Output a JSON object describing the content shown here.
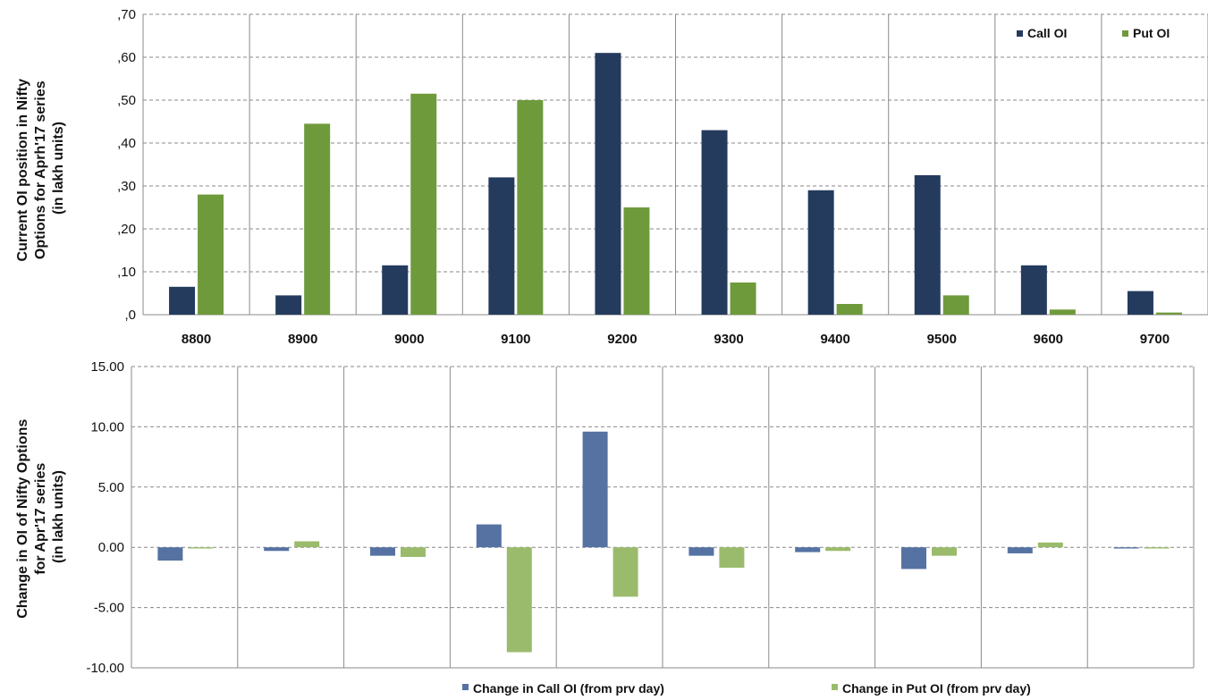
{
  "colors": {
    "call_oi": "#243b5e",
    "put_oi": "#6f9a3b",
    "change_call": "#5572a3",
    "change_put": "#9bbb6c"
  },
  "chart_data": [
    {
      "type": "bar",
      "categories": [
        "8800",
        "8900",
        "9000",
        "9100",
        "9200",
        "9300",
        "9400",
        "9500",
        "9600",
        "9700"
      ],
      "series": [
        {
          "name": "Call OI",
          "values": [
            6.5,
            4.5,
            11.5,
            32,
            61,
            43,
            29,
            32.5,
            11.5,
            5.5
          ]
        },
        {
          "name": "Put OI",
          "values": [
            28,
            44.5,
            51.5,
            50,
            25,
            7.5,
            2.5,
            4.5,
            1.2,
            0.5
          ]
        }
      ],
      "ylabel": "Current OI position in Nifty Options for Aprh'17  series (in lakh units)",
      "ylim": [
        0,
        70
      ],
      "yticks": [
        ",0",
        ",10",
        ",20",
        ",30",
        ",40",
        ",50",
        ",60",
        ",70"
      ],
      "ytick_values": [
        0,
        10,
        20,
        30,
        40,
        50,
        60,
        70
      ],
      "legend_position": "top-right",
      "grid": true
    },
    {
      "type": "bar",
      "categories": [
        "8800",
        "8900",
        "9000",
        "9100",
        "9200",
        "9300",
        "9400",
        "9500",
        "9600",
        "9700"
      ],
      "series": [
        {
          "name": "Change in Call OI (from prv day)",
          "values": [
            -1.1,
            -0.3,
            -0.7,
            1.9,
            9.6,
            -0.7,
            -0.4,
            -1.8,
            -0.5,
            -0.1
          ]
        },
        {
          "name": "Change in Put OI (from prv day)",
          "values": [
            -0.1,
            0.5,
            -0.8,
            -8.7,
            -4.1,
            -1.7,
            -0.3,
            -0.7,
            0.4,
            -0.1
          ]
        }
      ],
      "ylabel": "Change in OI of Nifty Options for Apr'17  series (in lakh units)",
      "ylim": [
        -10,
        15
      ],
      "yticks": [
        "-10.00",
        "-5.00",
        "0.00",
        "5.00",
        "10.00",
        "15.00"
      ],
      "ytick_values": [
        -10,
        -5,
        0,
        5,
        10,
        15
      ],
      "legend_position": "bottom",
      "grid": true
    }
  ]
}
